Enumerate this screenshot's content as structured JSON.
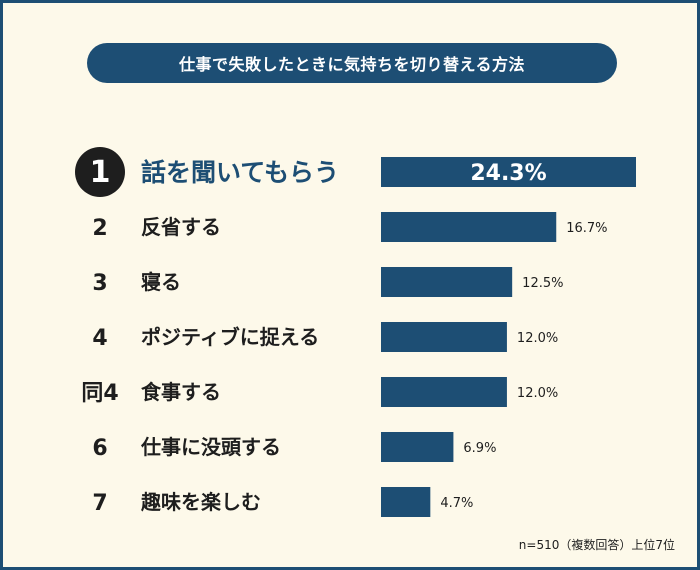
{
  "title": "仕事で失敗したときに気持ちを切り替える方法",
  "footnote": "n=510（複数回答）上位7位",
  "colors": {
    "bar": "#1d4e74",
    "text": "#1e1e1e",
    "rank1_bg": "#1e1e1e",
    "rank1_fg": "#ffffff",
    "top_label": "#1d4e74"
  },
  "chart_data": {
    "type": "bar",
    "orientation": "horizontal",
    "unit": "%",
    "xlim": [
      0,
      24.3
    ],
    "categories": [
      "話を聞いてもらう",
      "反省する",
      "寝る",
      "ポジティブに捉える",
      "食事する",
      "仕事に没頭する",
      "趣味を楽しむ"
    ],
    "ranks": [
      "1",
      "2",
      "3",
      "4",
      "同4",
      "6",
      "7"
    ],
    "values": [
      24.3,
      16.7,
      12.5,
      12.0,
      12.0,
      6.9,
      4.7
    ],
    "value_labels": [
      "24.3%",
      "16.7%",
      "12.5%",
      "12.0%",
      "12.0%",
      "6.9%",
      "4.7%"
    ]
  }
}
